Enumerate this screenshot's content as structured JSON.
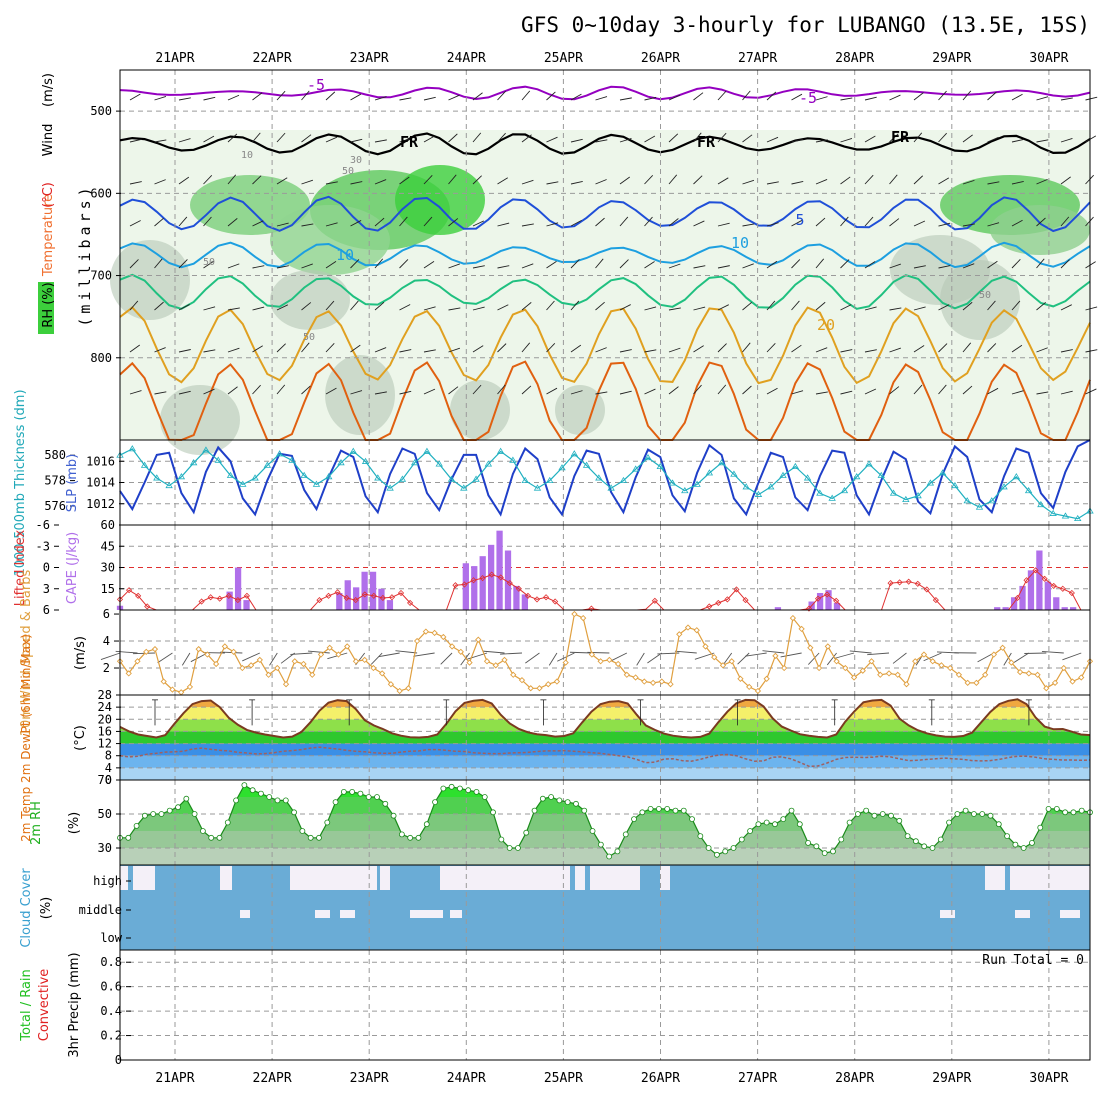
{
  "chart_data": {
    "type": "meteogram",
    "title": "GFS 0~10day 3-hourly for LUBANGO (13.5E, 15S)",
    "dates": [
      "21APR",
      "22APR",
      "23APR",
      "24APR",
      "25APR",
      "26APR",
      "27APR",
      "28APR",
      "29APR",
      "30APR"
    ],
    "colors": {
      "purple": "#9400c0",
      "blue": "#1f4fd8",
      "lightblue": "#1d9fe0",
      "green": "#20c080",
      "orange": "#e0a020",
      "darkorange": "#e06010",
      "magenta": "#d0108a",
      "rhgreen": "#3ccf3c",
      "cape": "#b070ea",
      "li": "#e03030",
      "wind10": "#e0a040"
    },
    "panels": [
      {
        "id": "profile",
        "ylabel_parts": [
          {
            "text": "RH (%)",
            "color": "#000000"
          },
          {
            "text": "Temperature",
            "color": "#f07030"
          },
          {
            "text": "(°C)",
            "color": "#e02020"
          },
          {
            "text": "Wind",
            "color": "#000000"
          },
          {
            "text": "(m/s)",
            "color": "#000000"
          }
        ],
        "axis_title": "(millibars)",
        "yticks": [
          "500",
          "600",
          "700",
          "800"
        ],
        "yrange": [
          450,
          900
        ],
        "contour_labels": [
          {
            "text": "-5",
            "color": "#9400c0"
          },
          {
            "text": "-5",
            "color": "#9400c0"
          },
          {
            "text": "FR",
            "color": "#000000"
          },
          {
            "text": "FR",
            "color": "#000000"
          },
          {
            "text": "FR",
            "color": "#000000"
          },
          {
            "text": "5",
            "color": "#1f4fd8"
          },
          {
            "text": "10",
            "color": "#1d9fe0"
          },
          {
            "text": "10",
            "color": "#1d9fe0"
          },
          {
            "text": "20",
            "color": "#e0a020"
          },
          {
            "text": "50",
            "color": "#888888"
          },
          {
            "text": "30",
            "color": "#888888"
          },
          {
            "text": "10",
            "color": "#888888"
          },
          {
            "text": "50",
            "color": "#888888"
          },
          {
            "text": "50",
            "color": "#888888"
          },
          {
            "text": "50",
            "color": "#888888"
          }
        ],
        "isotherms": [
          {
            "name": "-5",
            "color": "#9400c0",
            "base": 478,
            "amp": 5
          },
          {
            "name": "FR",
            "color": "#000000",
            "base": 540,
            "amp": 10
          },
          {
            "name": "5",
            "color": "#1f4fd8",
            "base": 625,
            "amp": 18
          },
          {
            "name": "10",
            "color": "#1d9fe0",
            "base": 675,
            "amp": 12
          },
          {
            "name": "15",
            "color": "#20c080",
            "base": 720,
            "amp": 18
          },
          {
            "name": "20",
            "color": "#e0a020",
            "base": 785,
            "amp": 45
          },
          {
            "name": "25",
            "color": "#e06010",
            "base": 860,
            "amp": 55
          }
        ]
      },
      {
        "id": "slp",
        "left_label": "1000-500mb Thickness (dm)",
        "right_label": "SLP (mb)",
        "left_ticks": [
          "580",
          "578",
          "576"
        ],
        "right_ticks": [
          "1016",
          "1014",
          "1012"
        ],
        "slp_range": [
          1010,
          1018
        ],
        "slp_series": [
          1013.2,
          1011.5,
          1014.0,
          1016.6,
          1016.8,
          1013.0,
          1011.2,
          1015.0,
          1017.3,
          1016.0,
          1012.5,
          1011.0,
          1014.2,
          1016.7,
          1016.5,
          1013.3,
          1011.5,
          1014.5,
          1017.0,
          1016.4,
          1012.7,
          1011.2,
          1014.8,
          1017.2,
          1016.7,
          1013.0,
          1011.4,
          1014.3,
          1016.6,
          1016.6,
          1012.8,
          1011.0,
          1014.8,
          1017.2,
          1016.2,
          1012.6,
          1011.0,
          1014.6,
          1017.0,
          1016.7,
          1013.1,
          1011.2,
          1014.5,
          1017.1,
          1016.4,
          1012.8,
          1011.3,
          1014.9,
          1017.5,
          1016.6,
          1012.5,
          1011.0,
          1014.0,
          1016.8,
          1016.4,
          1012.6,
          1011.4,
          1014.6,
          1017.0,
          1016.8,
          1012.8,
          1011.0,
          1014.2,
          1016.9,
          1016.2,
          1012.2,
          1011.1,
          1014.8,
          1017.4,
          1016.4,
          1012.4,
          1011.2,
          1014.6,
          1017.2,
          1016.8,
          1013.0,
          1011.6,
          1015.0,
          1017.4,
          1018.0
        ],
        "thick_series": [
          580.0,
          580.5,
          579.2,
          578.2,
          577.6,
          578.3,
          579.4,
          580.4,
          579.6,
          578.4,
          577.7,
          578.2,
          579.2,
          580.1,
          579.6,
          578.4,
          577.7,
          578.3,
          579.4,
          580.3,
          579.5,
          578.2,
          577.4,
          578.1,
          579.4,
          580.3,
          579.3,
          578.1,
          577.4,
          578.1,
          579.3,
          580.3,
          579.6,
          578.0,
          577.4,
          578.0,
          579.0,
          580.1,
          579.2,
          578.2,
          577.4,
          578.0,
          578.9,
          579.8,
          579.1,
          577.8,
          577.2,
          577.7,
          578.6,
          579.4,
          578.5,
          577.5,
          576.9,
          577.5,
          578.4,
          579.1,
          578.2,
          577.0,
          576.6,
          577.2,
          578.3,
          579.3,
          578.4,
          577.0,
          576.5,
          576.8,
          577.8,
          578.6,
          577.6,
          576.4,
          575.9,
          576.4,
          577.5,
          578.3,
          577.2,
          576.1,
          575.4,
          575.2,
          575.0,
          575.6
        ],
        "thick_range": [
          574.5,
          581.2
        ]
      },
      {
        "id": "cape",
        "left_label": "Lifted Index",
        "right_label": "CAPE (J/kg)",
        "left_ticks": [
          "-6",
          "-3",
          "0",
          "3",
          "6"
        ],
        "right_ticks": [
          "60",
          "45",
          "30",
          "15"
        ],
        "cape_range": [
          0,
          60
        ],
        "li_range": [
          6,
          -6
        ],
        "cape_series": [
          3,
          0,
          0,
          0,
          0,
          0,
          0,
          0,
          0,
          0,
          0,
          0,
          0,
          13,
          30,
          7,
          0,
          0,
          0,
          0,
          0,
          0,
          0,
          0,
          0,
          0,
          12,
          21,
          16,
          27,
          27,
          15,
          7,
          0,
          0,
          0,
          0,
          0,
          0,
          0,
          0,
          33,
          31,
          38,
          46,
          56,
          42,
          17,
          11,
          0,
          0,
          0,
          0,
          0,
          0,
          0,
          0,
          0,
          0,
          0,
          0,
          0,
          0,
          0,
          0,
          0,
          0,
          0,
          0,
          0,
          0,
          0,
          0,
          0,
          0,
          0,
          0,
          0,
          2,
          0,
          0,
          0,
          6,
          12,
          14,
          5,
          0,
          0,
          0,
          0,
          0,
          0,
          0,
          0,
          0,
          0,
          0,
          0,
          0,
          0,
          0,
          0,
          0,
          0,
          2,
          2,
          9,
          17,
          28,
          42,
          20,
          9,
          2,
          2,
          0,
          0
        ],
        "li_series": [
          4.5,
          3.2,
          4.0,
          5.5,
          6.0,
          6.0,
          6.0,
          6.0,
          6.0,
          4.8,
          4.2,
          4.4,
          4.0,
          4.6,
          4.0,
          6.0,
          6.0,
          6.0,
          6.0,
          6.0,
          6.0,
          6.0,
          4.6,
          4.0,
          3.5,
          4.3,
          4.6,
          3.8,
          4.0,
          4.3,
          4.2,
          3.6,
          5.0,
          6.0,
          6.0,
          6.0,
          6.0,
          2.5,
          2.4,
          1.8,
          1.5,
          1.0,
          1.4,
          2.2,
          3.0,
          4.0,
          4.5,
          4.2,
          4.8,
          6.0,
          6.0,
          6.0,
          5.8,
          6.0,
          6.0,
          6.0,
          6.0,
          6.0,
          5.9,
          4.7,
          6.0,
          6.0,
          6.0,
          6.0,
          6.0,
          5.5,
          5.0,
          4.5,
          3.1,
          4.6,
          6.0,
          6.0,
          6.0,
          6.0,
          6.0,
          6.0,
          5.8,
          4.4,
          3.8,
          4.7,
          6.0,
          6.0,
          6.0,
          6.0,
          6.0,
          2.2,
          2.1,
          2.0,
          2.3,
          3.1,
          4.6,
          6.0,
          6.0,
          6.0,
          6.0,
          6.0,
          6.0,
          6.0,
          6.0,
          4.3,
          1.8,
          0.4,
          1.6,
          2.6,
          3.0,
          3.6,
          6.0,
          6.0
        ]
      },
      {
        "id": "wind10",
        "ylabel": "10m Wind Speed & Barbs",
        "unit": "(m/s)",
        "yticks": [
          "6",
          "4",
          "2"
        ],
        "yrange": [
          0,
          6.3
        ],
        "speed_series": [
          2.5,
          1.6,
          2.5,
          3.2,
          3.4,
          1.0,
          0.4,
          0.2,
          0.6,
          3.4,
          3.0,
          2.3,
          3.6,
          3.2,
          2.0,
          2.2,
          2.6,
          1.5,
          2.0,
          0.8,
          2.5,
          2.3,
          1.5,
          3.0,
          3.5,
          3.0,
          3.6,
          2.5,
          2.6,
          2.0,
          1.6,
          0.8,
          0.3,
          0.5,
          4.0,
          4.7,
          4.6,
          4.3,
          3.6,
          3.2,
          2.4,
          4.1,
          2.5,
          2.2,
          2.6,
          1.5,
          1.1,
          0.5,
          0.5,
          0.8,
          1.0,
          2.4,
          6.0,
          5.7,
          3.0,
          2.5,
          2.6,
          2.3,
          1.5,
          1.3,
          1.0,
          0.9,
          1.0,
          0.8,
          4.5,
          5.0,
          4.8,
          3.6,
          2.8,
          2.2,
          2.5,
          1.2,
          0.6,
          0.3,
          1.2,
          2.9,
          2.0,
          5.7,
          4.9,
          3.5,
          2.0,
          3.6,
          2.5,
          2.0,
          1.3,
          1.8,
          2.5,
          1.5,
          1.6,
          1.5,
          0.8,
          2.5,
          3.0,
          2.5,
          2.2,
          2.0,
          1.5,
          0.9,
          0.9,
          1.5,
          3.0,
          3.5,
          2.4,
          1.7,
          1.6,
          1.5,
          0.5,
          0.9,
          2.0,
          1.0,
          1.3,
          2.5
        ]
      },
      {
        "id": "temp2m",
        "ylabel": "2m Temp 2m DewPt (6hr Min/Max)",
        "unit": "(°C)",
        "yticks": [
          "28",
          "24",
          "20",
          "16",
          "12",
          "8",
          "4",
          "0"
        ],
        "yrange": [
          0,
          28
        ],
        "temp_series": [
          17.5,
          16.0,
          15.0,
          14.5,
          14.0,
          14.8,
          18.5,
          22.0,
          25.0,
          26.0,
          26.2,
          24.0,
          20.5,
          18.2,
          16.5,
          15.6,
          15.0,
          14.5,
          14.0,
          14.3,
          15.8,
          19.0,
          22.8,
          25.5,
          26.3,
          26.0,
          23.4,
          19.7,
          18.0,
          16.8,
          15.4,
          14.6,
          14.1,
          14.0,
          14.2,
          15.0,
          18.5,
          22.6,
          25.4,
          26.1,
          26.4,
          25.2,
          21.5,
          18.6,
          16.8,
          15.7,
          15.1,
          14.8,
          14.3,
          14.5,
          15.4,
          19.0,
          22.5,
          25.0,
          25.8,
          26.0,
          25.2,
          21.5,
          18.0,
          16.5,
          15.3,
          14.6,
          14.2,
          14.0,
          14.2,
          15.3,
          19.0,
          22.5,
          25.3,
          26.4,
          26.3,
          24.2,
          20.3,
          17.6,
          16.3,
          15.1,
          14.6,
          14.2,
          14.0,
          15.0,
          19.2,
          22.6,
          25.6,
          26.2,
          26.4,
          24.5,
          20.2,
          18.0,
          16.4,
          15.4,
          14.7,
          14.3,
          14.2,
          14.5,
          15.6,
          19.0,
          22.4,
          25.0,
          26.1,
          26.6,
          25.0,
          20.6,
          17.6,
          16.7,
          16.8,
          15.9,
          15.0,
          14.8
        ],
        "dew_series": [
          8.0,
          7.6,
          7.8,
          8.5,
          8.8,
          9.2,
          9.3,
          9.5,
          10.2,
          10.5,
          10.1,
          9.8,
          9.6,
          9.1,
          8.9,
          8.6,
          8.7,
          9.0,
          9.5,
          9.7,
          10.0,
          10.5,
          10.8,
          10.5,
          10.2,
          9.8,
          9.5,
          9.3,
          9.0,
          8.8,
          8.8,
          9.2,
          9.5,
          9.6,
          10.0,
          10.0,
          9.8,
          9.5,
          9.4,
          9.0,
          8.8,
          8.7,
          8.7,
          8.9,
          9.0,
          9.1,
          9.4,
          9.6,
          9.6,
          9.7,
          9.5,
          9.3,
          9.0,
          8.8,
          8.4,
          8.0,
          7.6,
          6.8,
          5.7,
          5.9,
          6.9,
          7.0,
          6.4,
          6.2,
          6.8,
          7.6,
          8.2,
          8.4,
          8.0,
          7.0,
          6.2,
          6.3,
          7.5,
          7.6,
          7.0,
          5.8,
          4.5,
          4.6,
          5.6,
          6.8,
          7.4,
          7.5,
          7.4,
          7.5,
          7.8,
          7.6,
          7.0,
          6.4,
          6.5,
          6.8,
          7.0,
          7.2,
          7.0,
          6.8,
          6.4,
          6.3,
          6.4,
          6.8,
          7.4,
          7.8,
          7.8,
          7.5,
          7.0,
          6.8,
          6.6,
          6.6,
          6.5,
          6.6
        ]
      },
      {
        "id": "rh2m",
        "ylabel": "2m RH",
        "unit": "(%)",
        "yticks": [
          "70",
          "50",
          "30"
        ],
        "yrange": [
          20,
          70
        ],
        "rh_series": [
          36,
          36,
          43,
          49,
          50,
          50,
          52,
          54,
          59,
          50,
          40,
          36,
          36,
          45,
          58,
          67,
          64,
          62,
          60,
          58,
          58,
          51,
          40,
          36,
          36,
          45,
          57,
          63,
          63,
          62,
          60,
          60,
          56,
          49,
          38,
          36,
          36,
          44,
          57,
          65,
          66,
          65,
          64,
          63,
          60,
          51,
          35,
          30,
          30,
          39,
          52,
          59,
          60,
          58,
          57,
          56,
          52,
          40,
          32,
          25,
          28,
          38,
          47,
          51,
          53,
          53,
          53,
          52,
          52,
          47,
          37,
          30,
          26,
          28,
          30,
          35,
          40,
          44,
          45,
          44,
          47,
          52,
          44,
          33,
          31,
          27,
          28,
          35,
          45,
          50,
          52,
          49,
          50,
          49,
          46,
          37,
          34,
          31,
          30,
          35,
          45,
          50,
          52,
          50,
          50,
          49,
          44,
          37,
          32,
          30,
          33,
          42,
          53,
          53,
          51,
          51,
          52,
          51
        ]
      },
      {
        "id": "cloud",
        "ylabel": "Cloud Cover",
        "unit": "(%)",
        "levels": [
          "high",
          "middle",
          "low"
        ]
      },
      {
        "id": "precip",
        "ylabel_parts": [
          {
            "text": "Total / Rain",
            "color": "#20c020"
          },
          {
            "text": "Convective",
            "color": "#e02020"
          }
        ],
        "axis_title": "3hr Precip (mm)",
        "yticks": [
          "0.8",
          "0.6",
          "0.4",
          "0.2",
          "0"
        ],
        "yrange": [
          0,
          0.9
        ],
        "run_total": "Run Total = 0"
      }
    ]
  }
}
